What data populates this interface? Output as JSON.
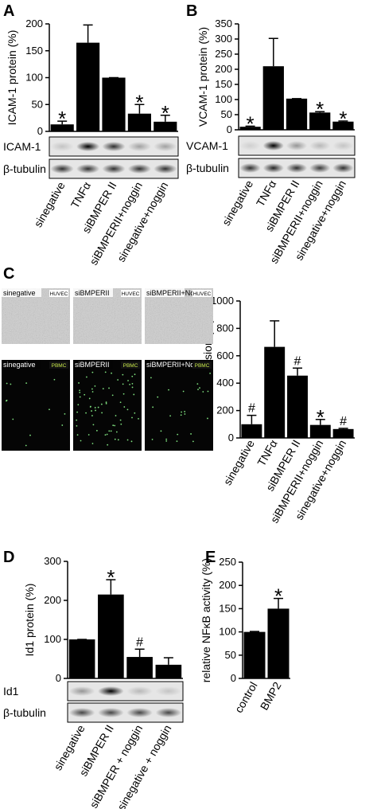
{
  "chart_data": [
    {
      "type": "bar",
      "panel": "A",
      "ylabel": "ICAM-1 protein (%)",
      "categories": [
        "sinegative",
        "TNFα",
        "siBMPER II",
        "siBMPERII+noggin",
        "sinegative+noggin"
      ],
      "values": [
        13,
        165,
        100,
        33,
        18
      ],
      "errors": [
        6,
        33,
        0,
        17,
        12
      ],
      "markers": [
        "*",
        null,
        null,
        "*",
        "*"
      ],
      "color": "#000000",
      "ylim": [
        0,
        200
      ],
      "yticks": [
        0,
        50,
        100,
        150,
        200
      ],
      "blots": [
        "ICAM-1",
        "β-tubulin"
      ]
    },
    {
      "type": "bar",
      "panel": "B",
      "ylabel": "VCAM-1 protein (%)",
      "categories": [
        "sinegative",
        "TNFα",
        "siBMPER II",
        "siBMPERII+noggin",
        "sinegative+noggin"
      ],
      "values": [
        10,
        210,
        103,
        57,
        27
      ],
      "errors": [
        2,
        92,
        0,
        3,
        2
      ],
      "markers": [
        "*",
        null,
        null,
        "*",
        "*"
      ],
      "color": "#000000",
      "ylim": [
        0,
        350
      ],
      "yticks": [
        0,
        50,
        100,
        150,
        200,
        250,
        300,
        350
      ],
      "blots": [
        "VCAM-1",
        "β-tubulin"
      ]
    },
    {
      "type": "bar",
      "panel": "C",
      "ylabel": "PBMC adhesion (%)",
      "categories": [
        "sinegative",
        "TNFα",
        "siBMPER II",
        "siBMPERII+noggin",
        "sinegative+noggin"
      ],
      "values": [
        100,
        665,
        455,
        95,
        65
      ],
      "errors": [
        65,
        190,
        55,
        40,
        5
      ],
      "markers": [
        "#",
        null,
        "#",
        "*",
        "#"
      ],
      "color": "#000000",
      "ylim": [
        0,
        1000
      ],
      "yticks": [
        0,
        200,
        400,
        600,
        800,
        1000
      ],
      "micrographs": [
        {
          "label": "sinegative",
          "tag": "HUVEC"
        },
        {
          "label": "siBMPERII",
          "tag": "HUVEC"
        },
        {
          "label": "siBMPERII+Noggin",
          "tag": "HUVEC"
        },
        {
          "label": "sinegative",
          "tag": "PBMC"
        },
        {
          "label": "siBMPERII",
          "tag": "PBMC"
        },
        {
          "label": "siBMPERII+Noggin",
          "tag": "PBMC"
        }
      ]
    },
    {
      "type": "bar",
      "panel": "D",
      "ylabel": "Id1 protein (%)",
      "categories": [
        "sinegative",
        "siBMPER II",
        "siBMPER + noggin",
        "sinegative + noggin"
      ],
      "values": [
        100,
        215,
        55,
        35
      ],
      "errors": [
        0,
        38,
        20,
        18
      ],
      "markers": [
        null,
        "*",
        "#",
        null
      ],
      "color": "#000000",
      "ylim": [
        0,
        300
      ],
      "yticks": [
        0,
        100,
        200,
        300
      ],
      "blots": [
        "Id1",
        "β-tubulin"
      ]
    },
    {
      "type": "bar",
      "panel": "E",
      "ylabel": "relative NFκB activity (%)",
      "categories": [
        "control",
        "BMP2"
      ],
      "values": [
        100,
        150
      ],
      "errors": [
        1,
        22
      ],
      "markers": [
        null,
        "*"
      ],
      "color": "#000000",
      "ylim": [
        0,
        250
      ],
      "yticks": [
        0,
        50,
        100,
        150,
        200,
        250
      ]
    }
  ]
}
